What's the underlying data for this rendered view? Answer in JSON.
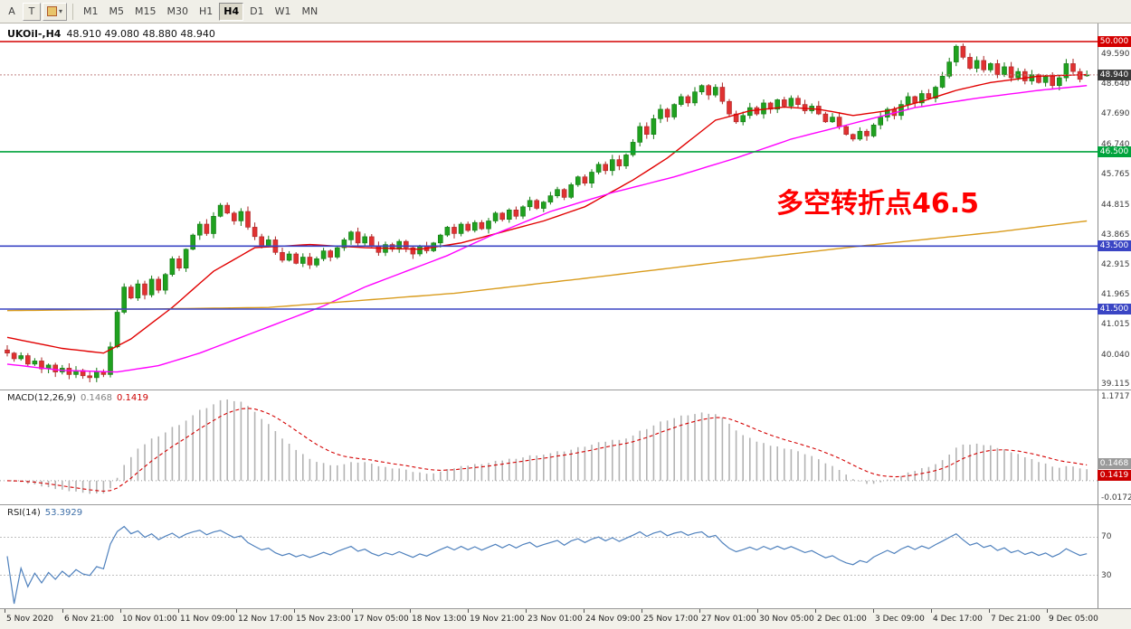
{
  "toolbar": {
    "tools": [
      {
        "label": "A"
      },
      {
        "label": "T"
      }
    ],
    "shapes_button_caret": "▾",
    "timeframes": [
      "M1",
      "M5",
      "M15",
      "M30",
      "H1",
      "H4",
      "D1",
      "W1",
      "MN"
    ],
    "active_timeframe": "H4"
  },
  "chart": {
    "header_symbol": "UKOil-,H4",
    "header_ohlc": "48.910 49.080 48.880 48.940",
    "annotation": {
      "text": "多空转折点46.5",
      "color": "#FF0000"
    },
    "bid_label": "48.940",
    "bid_box_color": "#3A3A3A"
  },
  "indicators": {
    "macd": {
      "name": "MACD(12,26,9)",
      "value_main": "0.1468",
      "value_signal": "0.1419",
      "axis_max": "1.1717",
      "axis_min": "-0.0172"
    },
    "rsi": {
      "name": "RSI(14)",
      "value": "53.3929",
      "level_high": "70",
      "level_low": "30"
    }
  },
  "chart_data": {
    "type": "candlestick",
    "symbol": "UKOil-",
    "timeframe": "H4",
    "ohlc_current": {
      "open": 48.91,
      "high": 49.08,
      "low": 48.88,
      "close": 48.94
    },
    "bid_price": 48.94,
    "y_axis_ticks": [
      "49.590",
      "48.640",
      "47.690",
      "46.740",
      "45.765",
      "44.815",
      "43.865",
      "42.915",
      "41.965",
      "41.015",
      "40.040",
      "39.115"
    ],
    "x_axis_ticks": [
      "5 Nov 2020",
      "6 Nov 21:00",
      "10 Nov 01:00",
      "11 Nov 09:00",
      "12 Nov 17:00",
      "15 Nov 23:00",
      "17 Nov 05:00",
      "18 Nov 13:00",
      "19 Nov 21:00",
      "23 Nov 01:00",
      "24 Nov 09:00",
      "25 Nov 17:00",
      "27 Nov 01:00",
      "30 Nov 05:00",
      "2 Dec 01:00",
      "3 Dec 09:00",
      "4 Dec 17:00",
      "7 Dec 21:00",
      "9 Dec 05:00"
    ],
    "horizontal_lines": [
      {
        "price": 50.0,
        "label": "50.000",
        "color": "#D40000"
      },
      {
        "price": 46.5,
        "label": "46.500",
        "color": "#00A33C"
      },
      {
        "price": 43.5,
        "label": "43.500",
        "color": "#3A45C4"
      },
      {
        "price": 41.5,
        "label": "41.500",
        "color": "#3A45C4"
      }
    ],
    "candle_colors": {
      "up": "#1FA11F",
      "up_border": "#127812",
      "down": "#E03131",
      "down_border": "#A82525"
    },
    "candles": {
      "first_open": 40.2,
      "closes": [
        40.1,
        39.92,
        40.02,
        39.75,
        39.85,
        39.6,
        39.72,
        39.5,
        39.62,
        39.42,
        39.55,
        39.38,
        39.32,
        39.5,
        39.42,
        40.3,
        41.4,
        42.2,
        41.85,
        42.3,
        41.95,
        42.45,
        42.1,
        42.6,
        43.1,
        42.8,
        43.4,
        43.85,
        44.2,
        43.9,
        44.45,
        44.8,
        44.55,
        44.3,
        44.6,
        44.1,
        43.8,
        43.5,
        43.7,
        43.3,
        43.05,
        43.25,
        42.95,
        43.15,
        42.9,
        43.1,
        43.35,
        43.15,
        43.45,
        43.7,
        43.95,
        43.6,
        43.8,
        43.5,
        43.3,
        43.55,
        43.4,
        43.65,
        43.45,
        43.25,
        43.5,
        43.35,
        43.6,
        43.85,
        44.1,
        43.9,
        44.2,
        44.0,
        44.25,
        44.05,
        44.3,
        44.55,
        44.35,
        44.65,
        44.45,
        44.75,
        44.95,
        44.7,
        44.9,
        45.1,
        45.3,
        45.05,
        45.45,
        45.7,
        45.5,
        45.85,
        46.1,
        45.9,
        46.25,
        46.05,
        46.4,
        46.8,
        47.3,
        47.05,
        47.55,
        47.85,
        47.6,
        48.0,
        48.25,
        48.05,
        48.4,
        48.6,
        48.3,
        48.55,
        48.1,
        47.7,
        47.45,
        47.65,
        47.9,
        47.7,
        48.05,
        47.85,
        48.15,
        47.95,
        48.2,
        48.0,
        47.8,
        47.95,
        47.7,
        47.45,
        47.6,
        47.3,
        47.05,
        46.9,
        47.15,
        47.0,
        47.35,
        47.6,
        47.85,
        47.65,
        48.0,
        48.25,
        48.05,
        48.35,
        48.2,
        48.55,
        48.9,
        49.35,
        49.85,
        49.5,
        49.15,
        49.4,
        49.1,
        49.3,
        48.95,
        49.2,
        48.85,
        49.05,
        48.75,
        48.95,
        48.7,
        48.9,
        48.6,
        48.85,
        49.3,
        49.05,
        48.8,
        48.94
      ]
    },
    "moving_averages": [
      {
        "name": "ma-fast-red",
        "color": "#E10000",
        "anchors": [
          [
            0,
            40.6
          ],
          [
            8,
            40.25
          ],
          [
            14,
            40.1
          ],
          [
            18,
            40.55
          ],
          [
            24,
            41.55
          ],
          [
            30,
            42.7
          ],
          [
            36,
            43.45
          ],
          [
            44,
            43.55
          ],
          [
            52,
            43.45
          ],
          [
            60,
            43.4
          ],
          [
            66,
            43.6
          ],
          [
            72,
            43.95
          ],
          [
            78,
            44.3
          ],
          [
            84,
            44.75
          ],
          [
            91,
            45.6
          ],
          [
            96,
            46.3
          ],
          [
            103,
            47.5
          ],
          [
            108,
            47.8
          ],
          [
            113,
            47.92
          ],
          [
            118,
            47.85
          ],
          [
            123,
            47.65
          ],
          [
            128,
            47.8
          ],
          [
            133,
            48.1
          ],
          [
            138,
            48.45
          ],
          [
            143,
            48.7
          ],
          [
            150,
            48.9
          ],
          [
            157,
            48.95
          ]
        ]
      },
      {
        "name": "ma-mid-magenta",
        "color": "#FF00FF",
        "anchors": [
          [
            0,
            39.75
          ],
          [
            8,
            39.55
          ],
          [
            16,
            39.5
          ],
          [
            22,
            39.7
          ],
          [
            28,
            40.1
          ],
          [
            34,
            40.6
          ],
          [
            40,
            41.1
          ],
          [
            46,
            41.6
          ],
          [
            52,
            42.2
          ],
          [
            58,
            42.7
          ],
          [
            64,
            43.2
          ],
          [
            70,
            43.8
          ],
          [
            79,
            44.6
          ],
          [
            88,
            45.2
          ],
          [
            97,
            45.7
          ],
          [
            106,
            46.3
          ],
          [
            114,
            46.9
          ],
          [
            123,
            47.4
          ],
          [
            132,
            47.9
          ],
          [
            141,
            48.2
          ],
          [
            150,
            48.45
          ],
          [
            157,
            48.6
          ]
        ]
      },
      {
        "name": "ma-slow-orange",
        "color": "#D99C1E",
        "anchors": [
          [
            0,
            41.45
          ],
          [
            20,
            41.5
          ],
          [
            38,
            41.55
          ],
          [
            50,
            41.75
          ],
          [
            65,
            42.0
          ],
          [
            85,
            42.5
          ],
          [
            104,
            43.0
          ],
          [
            124,
            43.5
          ],
          [
            144,
            43.95
          ],
          [
            157,
            44.3
          ]
        ]
      }
    ],
    "macd_params": {
      "fast": 12,
      "slow": 26,
      "signal": 9,
      "histogram_color": "#B3B3B3",
      "signal_color": "#D40000"
    },
    "rsi_params": {
      "period": 14,
      "levels": [
        70,
        30
      ],
      "line_color": "#4F81BD"
    }
  }
}
